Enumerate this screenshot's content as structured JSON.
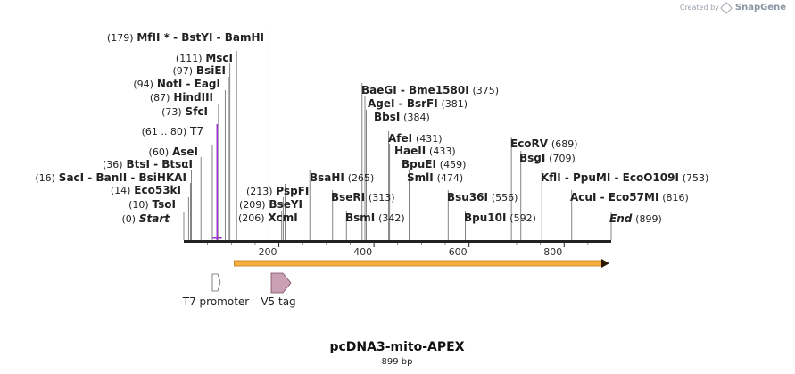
{
  "branding": {
    "prefix": "Created by",
    "logo": "SnapGene"
  },
  "map": {
    "name": "pcDNA3-mito-APEX",
    "length_label": "899 bp",
    "total_bp": 899
  },
  "ticks": [
    {
      "bp": 200,
      "label": "200"
    },
    {
      "bp": 400,
      "label": "400"
    },
    {
      "bp": 600,
      "label": "600"
    },
    {
      "bp": 800,
      "label": "800"
    }
  ],
  "sites": [
    {
      "bp": 0,
      "text": "Start",
      "position": "(0)",
      "style": "start"
    },
    {
      "bp": 10,
      "text": "TsoI",
      "position": "(10)"
    },
    {
      "bp": 14,
      "text": "Eco53kI",
      "position": "(14)"
    },
    {
      "bp": 16,
      "text": "SacI  -  BanII  -  BsiHKAI",
      "position": "(16)"
    },
    {
      "bp": 36,
      "text": "BtsI  -  BtsαI",
      "position": "(36)"
    },
    {
      "bp": 60,
      "text": "AseI",
      "position": "(60)"
    },
    {
      "bp": 70,
      "text": "T7",
      "position": "(61 .. 80)",
      "style": "primer"
    },
    {
      "bp": 73,
      "text": "SfcI",
      "position": "(73)"
    },
    {
      "bp": 87,
      "text": "HindIII",
      "position": "(87)"
    },
    {
      "bp": 94,
      "text": "NotI  -  EagI",
      "position": "(94)"
    },
    {
      "bp": 97,
      "text": "BsiEI",
      "position": "(97)"
    },
    {
      "bp": 111,
      "text": "MscI",
      "position": "(111)"
    },
    {
      "bp": 179,
      "text": "MfII *  -  BstYI  -  BamHI",
      "position": "(179)"
    },
    {
      "bp": 206,
      "text": "XcmI",
      "position": "(206)"
    },
    {
      "bp": 209,
      "text": "BseYI",
      "position": "(209)"
    },
    {
      "bp": 213,
      "text": "PspFI",
      "position": "(213)"
    },
    {
      "bp": 265,
      "text": "BsaHI",
      "position": "(265)"
    },
    {
      "bp": 313,
      "text": "BseRI",
      "position": "(313)"
    },
    {
      "bp": 342,
      "text": "BsmI",
      "position": "(342)"
    },
    {
      "bp": 375,
      "text": "BaeGI  -  Bme1580I",
      "position": "(375)"
    },
    {
      "bp": 381,
      "text": "AgeI  -  BsrFI",
      "position": "(381)"
    },
    {
      "bp": 384,
      "text": "BbsI",
      "position": "(384)"
    },
    {
      "bp": 431,
      "text": "AfeI",
      "position": "(431)"
    },
    {
      "bp": 433,
      "text": "HaeII",
      "position": "(433)"
    },
    {
      "bp": 459,
      "text": "BpuEI",
      "position": "(459)"
    },
    {
      "bp": 474,
      "text": "SmlI",
      "position": "(474)"
    },
    {
      "bp": 556,
      "text": "Bsu36I",
      "position": "(556)"
    },
    {
      "bp": 592,
      "text": "Bpu10I",
      "position": "(592)"
    },
    {
      "bp": 689,
      "text": "EcoRV",
      "position": "(689)"
    },
    {
      "bp": 709,
      "text": "BsgI",
      "position": "(709)"
    },
    {
      "bp": 753,
      "text": "KflI  -  PpuMI  -  EcoO109I",
      "position": "(753)"
    },
    {
      "bp": 816,
      "text": "AcuI  -  Eco57MI",
      "position": "(816)"
    },
    {
      "bp": 899,
      "text": "End",
      "position": "(899)",
      "style": "end"
    }
  ],
  "features": [
    {
      "name": "T7 promoter",
      "type": "promoter",
      "color": "#ffffff"
    },
    {
      "name": "V5 tag",
      "type": "tag",
      "color": "#c9a0b4"
    }
  ],
  "orf": {
    "color": "#f5b041",
    "stroke": "#c07a10"
  }
}
